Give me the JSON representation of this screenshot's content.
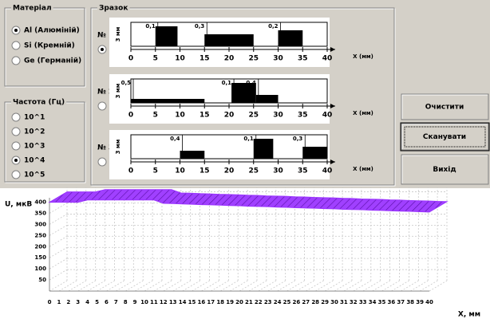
{
  "material": {
    "title": "Матеріал",
    "options": [
      "Al (Алюміній)",
      "Si (Кремній)",
      "Ge (Германій)"
    ],
    "selected": 0
  },
  "frequency": {
    "title": "Частота (Гц)",
    "options": [
      "10^1",
      "10^2",
      "10^3",
      "10^4",
      "10^5"
    ],
    "selected": 3
  },
  "sample_group": {
    "title": "Зразок",
    "selected": 0,
    "thickness_label": "3 мм",
    "x_label": "X (мм)",
    "ticks": [
      0,
      5,
      10,
      15,
      20,
      25,
      30,
      35,
      40
    ],
    "samples": [
      {
        "label": "№ 1",
        "blocks": [
          {
            "from": 5,
            "to": 9.5,
            "depth": 0.1,
            "depth_label": "0,1"
          },
          {
            "from": 15,
            "to": 25,
            "depth": 0.3,
            "depth_label": "0,3"
          },
          {
            "from": 30,
            "to": 35,
            "depth": 0.2,
            "depth_label": "0,2"
          }
        ]
      },
      {
        "label": "№ 2",
        "blocks": [
          {
            "from": 0,
            "to": 15,
            "depth": 0.5,
            "depth_label": "0,5"
          },
          {
            "from": 20.5,
            "to": 25.5,
            "depth": 0.1,
            "depth_label": "0,1"
          },
          {
            "from": 25.5,
            "to": 30,
            "depth": 0.4,
            "depth_label": "0,4"
          }
        ]
      },
      {
        "label": "№ 3",
        "blocks": [
          {
            "from": 10,
            "to": 15,
            "depth": 0.4,
            "depth_label": "0,4"
          },
          {
            "from": 25,
            "to": 29,
            "depth": 0.1,
            "depth_label": "0,1"
          },
          {
            "from": 35,
            "to": 40,
            "depth": 0.3,
            "depth_label": "0,3"
          }
        ]
      }
    ]
  },
  "buttons": [
    "Очистити",
    "Сканувати",
    "Вихід"
  ],
  "chart": {
    "type": "area3d",
    "y_label": "U, мкВ",
    "x_label": "X, мм",
    "color": "#9a33ff",
    "x": [
      0,
      1,
      2,
      3,
      4,
      5,
      6,
      7,
      8,
      9,
      10,
      11,
      12,
      13,
      14,
      15,
      16,
      17,
      18,
      19,
      20,
      21,
      22,
      23,
      24,
      25,
      26,
      27,
      28,
      29,
      30,
      31,
      32,
      33,
      34,
      35,
      36,
      37,
      38,
      39,
      40
    ],
    "values": [
      400,
      400,
      400,
      400,
      410,
      410,
      410,
      410,
      410,
      410,
      410,
      410,
      395,
      394,
      392,
      391,
      389,
      388,
      387,
      385,
      384,
      382,
      381,
      380,
      378,
      377,
      375,
      374,
      373,
      371,
      370,
      368,
      367,
      366,
      364,
      363,
      361,
      360,
      359,
      357,
      356
    ],
    "xlim": [
      0,
      40
    ],
    "xticks": [
      0,
      1,
      2,
      3,
      4,
      5,
      6,
      7,
      8,
      9,
      10,
      11,
      12,
      13,
      14,
      15,
      16,
      17,
      18,
      19,
      20,
      21,
      22,
      23,
      24,
      25,
      26,
      27,
      28,
      29,
      30,
      31,
      32,
      33,
      34,
      35,
      36,
      37,
      38,
      39,
      40
    ],
    "ylim": [
      0,
      420
    ],
    "yticks": [
      50,
      100,
      150,
      200,
      250,
      300,
      350,
      400
    ]
  }
}
